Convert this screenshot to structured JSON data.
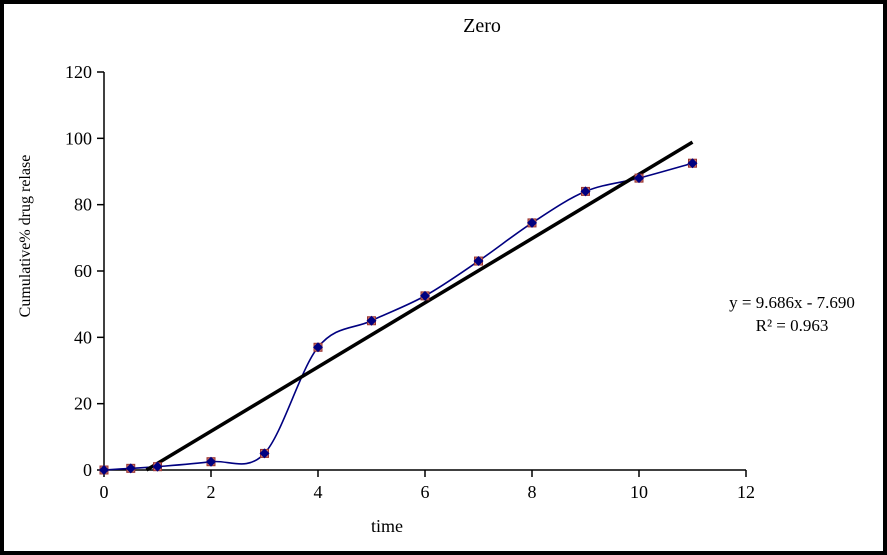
{
  "chart_data": {
    "type": "line",
    "title": "Zero",
    "xlabel": "time",
    "ylabel": "Cumulative% drug relase",
    "x": [
      0,
      0.5,
      1,
      2,
      3,
      4,
      5,
      6,
      7,
      8,
      9,
      10,
      11
    ],
    "series": [
      {
        "name": "cumulative-percent-drug-release",
        "values": [
          0,
          0.5,
          1,
          2.5,
          5,
          37,
          45,
          52.5,
          63,
          74.5,
          84,
          88,
          92.5
        ]
      }
    ],
    "trendline": {
      "slope": 9.686,
      "intercept": -7.69,
      "x_start": 0.794,
      "x_end": 11.0,
      "label_line1": "y = 9.686x - 7.690",
      "label_line2": "R² = 0.963"
    },
    "xlim": [
      0,
      12
    ],
    "ylim": [
      0,
      120
    ],
    "xticks": [
      0,
      2,
      4,
      6,
      8,
      10,
      12
    ],
    "yticks": [
      0,
      20,
      40,
      60,
      80,
      100,
      120
    ],
    "grid": false,
    "legend": "none",
    "colors": {
      "series_line": "#000080",
      "marker_diamond": "#000080",
      "marker_square_fill": "#cc7a66",
      "marker_square_stroke": "#993333",
      "trendline": "#000000",
      "axis": "#000000"
    }
  }
}
